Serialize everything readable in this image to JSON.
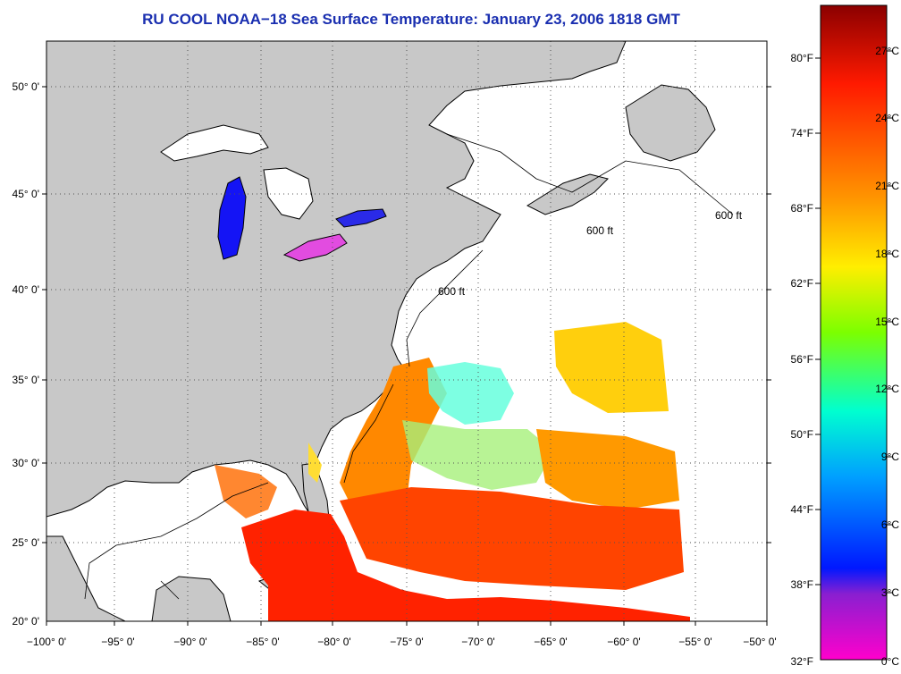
{
  "title": "RU COOL  NOAA−18  Sea Surface Temperature:  January 23, 2006 1818 GMT",
  "lat_labels": [
    "50° 0'",
    "45° 0'",
    "40° 0'",
    "35° 0'",
    "30° 0'",
    "25° 0'",
    "20° 0'"
  ],
  "lon_labels": [
    "−100° 0'",
    "−95° 0'",
    "−90° 0'",
    "−85° 0'",
    "−80° 0'",
    "−75° 0'",
    "−70° 0'",
    "−65° 0'",
    "−60° 0'",
    "−55° 0'",
    "−50° 0'"
  ],
  "contour_label": "600 ft",
  "colorbar": {
    "fahrenheit": [
      "80°F",
      "74°F",
      "68°F",
      "62°F",
      "56°F",
      "50°F",
      "44°F",
      "38°F",
      "32°F"
    ],
    "celsius": [
      "27°C",
      "24°C",
      "21°C",
      "18°C",
      "15°C",
      "12°C",
      "9°C",
      "6°C",
      "3°C",
      "0°C"
    ],
    "colors": [
      "#8b0000",
      "#ff1a00",
      "#ff9900",
      "#ffee00",
      "#7cff00",
      "#00ffd0",
      "#00a0ff",
      "#0018ff",
      "#8a1fd0",
      "#ff00cc"
    ]
  },
  "map_colors": {
    "land": "#c8c8c8",
    "water": "#ffffff",
    "coast": "#000000",
    "grid": "#555555"
  }
}
